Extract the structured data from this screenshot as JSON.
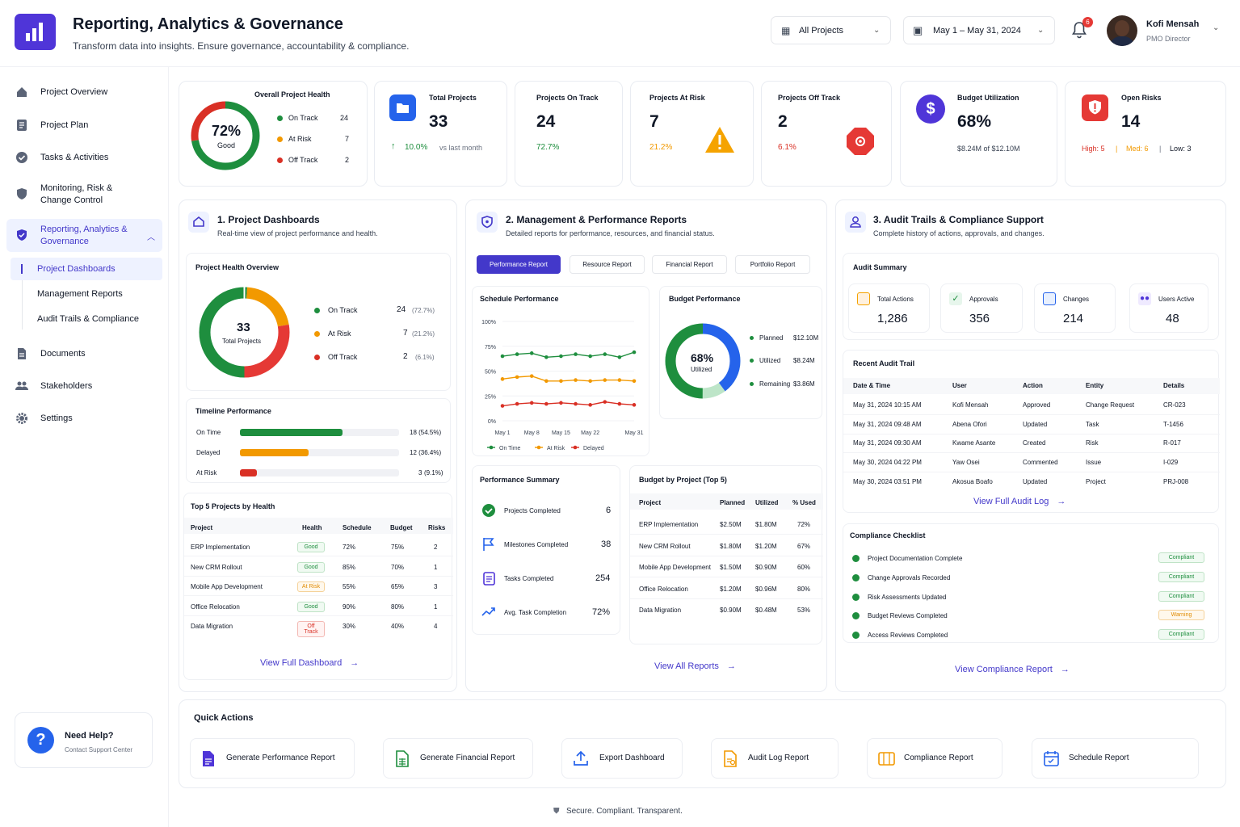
{
  "header": {
    "title": "Reporting, Analytics & Governance",
    "subtitle": "Transform data into insights. Ensure governance, accountability & compliance.",
    "project_filter": "All Projects",
    "date_range": "May 1 – May 31, 2024",
    "notif_count": "6",
    "user_name": "Kofi Mensah",
    "user_role": "PMO Director"
  },
  "sidebar": {
    "items": [
      {
        "label": "Project Overview"
      },
      {
        "label": "Project Plan"
      },
      {
        "label": "Tasks & Activities"
      },
      {
        "label": "Monitoring, Risk &\nChange Control"
      },
      {
        "label": "Reporting, Analytics &\nGovernance"
      },
      {
        "label": "Documents"
      },
      {
        "label": "Stakeholders"
      },
      {
        "label": "Settings"
      }
    ],
    "subitems": [
      "Project Dashboards",
      "Management Reports",
      "Audit Trails & Compliance"
    ],
    "help_title": "Need Help?",
    "help_sub": "Contact Support Center"
  },
  "kpi": {
    "health_title": "Overall Project Health",
    "health_pct": "72%",
    "health_label": "Good",
    "legend": [
      {
        "label": "On Track",
        "val": "24",
        "color": "#1e8e3e"
      },
      {
        "label": "At Risk",
        "val": "7",
        "color": "#f29900"
      },
      {
        "label": "Off Track",
        "val": "2",
        "color": "#d93025"
      }
    ],
    "total_title": "Total Projects",
    "total_val": "33",
    "total_delta": "10.0%",
    "total_delta_sub": "vs last month",
    "ontrack_title": "Projects On Track",
    "ontrack_val": "24",
    "ontrack_pct": "72.7%",
    "atrisk_title": "Projects At Risk",
    "atrisk_val": "7",
    "atrisk_pct": "21.2%",
    "offtrack_title": "Projects Off Track",
    "offtrack_val": "2",
    "offtrack_pct": "6.1%",
    "budget_title": "Budget Utilization",
    "budget_val": "68%",
    "budget_sub": "$8.24M of $12.10M",
    "risks_title": "Open Risks",
    "risks_val": "14",
    "risks_high": "High: 5",
    "risks_med": "Med: 6",
    "risks_low": "Low: 3",
    "sep": "|"
  },
  "s1": {
    "title": "1. Project Dashboards",
    "sub": "Real-time view of project performance and health.",
    "pho_title": "Project Health Overview",
    "donut_val": "33",
    "donut_label": "Total Projects",
    "legend": [
      {
        "label": "On Track",
        "val": "24",
        "pct": "(72.7%)"
      },
      {
        "label": "At Risk",
        "val": "7",
        "pct": "(21.2%)"
      },
      {
        "label": "Off Track",
        "val": "2",
        "pct": "(6.1%)"
      }
    ],
    "timeline_title": "Timeline Performance",
    "timeline": [
      {
        "label": "On Time",
        "val": "18 (54.5%)",
        "frac": 0.545,
        "color": "#1e8e3e"
      },
      {
        "label": "Delayed",
        "val": "12 (36.4%)",
        "frac": 0.364,
        "color": "#f29900"
      },
      {
        "label": "At Risk",
        "val": "3",
        "pct": "(9.1%)",
        "frac": 0.091,
        "color": "#d93025"
      }
    ],
    "top5_title": "Top 5 Projects by Health",
    "top5_headers": [
      "Project",
      "Health",
      "Schedule",
      "Budget",
      "Risks"
    ],
    "top5_rows": [
      [
        "ERP Implementation",
        "Good",
        "72%",
        "75%",
        "2"
      ],
      [
        "New CRM Rollout",
        "Good",
        "85%",
        "70%",
        "1"
      ],
      [
        "Mobile App Development",
        "At Risk",
        "55%",
        "65%",
        "3"
      ],
      [
        "Office Relocation",
        "Good",
        "90%",
        "80%",
        "1"
      ],
      [
        "Data Migration",
        "Off Track",
        "30%",
        "40%",
        "4"
      ]
    ],
    "link": "View Full Dashboard"
  },
  "s2": {
    "title": "2. Management & Performance Reports",
    "sub": "Detailed reports for performance, resources, and financial status.",
    "tabs": [
      "Performance Report",
      "Resource Report",
      "Financial Report",
      "Portfolio Report"
    ],
    "sched_title": "Schedule Performance",
    "yticks": [
      "100%",
      "75%",
      "50%",
      "25%",
      "0%"
    ],
    "xticks": [
      "May 1",
      "May 8",
      "May 15",
      "May 22",
      "May 31"
    ],
    "legend": [
      "On Time",
      "At Risk",
      "Delayed"
    ],
    "budget_title": "Budget Performance",
    "budget_pct": "68%",
    "budget_label": "Utilized",
    "budget_legend": [
      {
        "label": "Planned",
        "val": "$12.10M"
      },
      {
        "label": "Utilized",
        "val": "$8.24M"
      },
      {
        "label": "Remaining",
        "val": "$3.86M"
      }
    ],
    "perf_title": "Performance Summary",
    "perf": [
      {
        "label": "Projects Completed",
        "val": "6"
      },
      {
        "label": "Milestones Completed",
        "val": "38"
      },
      {
        "label": "Tasks Completed",
        "val": "254"
      },
      {
        "label": "Avg. Task Completion",
        "val": "72%"
      }
    ],
    "bbp_title": "Budget by Project (Top 5)",
    "bbp_headers": [
      "Project",
      "Planned",
      "Utilized",
      "% Used"
    ],
    "bbp_rows": [
      [
        "ERP Implementation",
        "$2.50M",
        "$1.80M",
        "72%"
      ],
      [
        "New CRM Rollout",
        "$1.80M",
        "$1.20M",
        "67%"
      ],
      [
        "Mobile App Development",
        "$1.50M",
        "$0.90M",
        "60%"
      ],
      [
        "Office Relocation",
        "$1.20M",
        "$0.96M",
        "80%"
      ],
      [
        "Data Migration",
        "$0.90M",
        "$0.48M",
        "53%"
      ]
    ],
    "link": "View All Reports"
  },
  "s3": {
    "title": "3. Audit Trails & Compliance Support",
    "sub": "Complete history of actions, approvals, and changes.",
    "summary_title": "Audit Summary",
    "summary": [
      {
        "label": "Total Actions",
        "val": "1,286"
      },
      {
        "label": "Approvals",
        "val": "356"
      },
      {
        "label": "Changes",
        "val": "214"
      },
      {
        "label": "Users Active",
        "val": "48"
      }
    ],
    "trail_title": "Recent Audit Trail",
    "trail_headers": [
      "Date & Time",
      "User",
      "Action",
      "Entity",
      "Details"
    ],
    "trail_rows": [
      [
        "May 31, 2024 10:15 AM",
        "Kofi Mensah",
        "Approved",
        "Change Request",
        "CR-023"
      ],
      [
        "May 31, 2024 09:48 AM",
        "Abena Ofori",
        "Updated",
        "Task",
        "T-1456"
      ],
      [
        "May 31, 2024 09:30 AM",
        "Kwame Asante",
        "Created",
        "Risk",
        "R-017"
      ],
      [
        "May 30, 2024 04:22 PM",
        "Yaw Osei",
        "Commented",
        "Issue",
        "I-029"
      ],
      [
        "May 30, 2024 03:51 PM",
        "Akosua Boafo",
        "Updated",
        "Project",
        "PRJ-008"
      ]
    ],
    "trail_link": "View Full Audit Log",
    "check_title": "Compliance Checklist",
    "checks": [
      {
        "label": "Project Documentation Complete",
        "status": "Compliant"
      },
      {
        "label": "Change Approvals Recorded",
        "status": "Compliant"
      },
      {
        "label": "Risk Assessments Updated",
        "status": "Compliant"
      },
      {
        "label": "Budget Reviews Completed",
        "status": "Warning"
      },
      {
        "label": "Access Reviews Completed",
        "status": "Compliant"
      }
    ],
    "link": "View Compliance Report"
  },
  "quick": {
    "title": "Quick Actions",
    "items": [
      "Generate Performance Report",
      "Generate Financial Report",
      "Export Dashboard",
      "Audit Log Report",
      "Compliance Report",
      "Schedule Report"
    ]
  },
  "footer": "Secure. Compliant. Transparent.",
  "chart_data": [
    {
      "type": "line",
      "title": "Schedule Performance",
      "x": [
        "May 1",
        "May 4",
        "May 8",
        "May 11",
        "May 15",
        "May 18",
        "May 22",
        "May 25",
        "May 28",
        "May 31"
      ],
      "xticks": [
        "May 1",
        "May 8",
        "May 15",
        "May 22",
        "May 31"
      ],
      "ylim": [
        0,
        100
      ],
      "series": [
        {
          "name": "On Time",
          "values": [
            65,
            67,
            68,
            64,
            65,
            67,
            65,
            67,
            64,
            69
          ]
        },
        {
          "name": "At Risk",
          "values": [
            42,
            44,
            45,
            40,
            40,
            41,
            40,
            41,
            41,
            40
          ]
        },
        {
          "name": "Delayed",
          "values": [
            15,
            17,
            18,
            17,
            18,
            17,
            16,
            19,
            17,
            16
          ]
        }
      ]
    },
    {
      "type": "pie",
      "title": "Project Health Overview",
      "categories": [
        "On Track",
        "At Risk",
        "Off Track"
      ],
      "values": [
        24,
        7,
        2
      ]
    },
    {
      "type": "pie",
      "title": "Budget Performance",
      "categories": [
        "Utilized",
        "Remaining"
      ],
      "values": [
        8.24,
        3.86
      ]
    }
  ]
}
